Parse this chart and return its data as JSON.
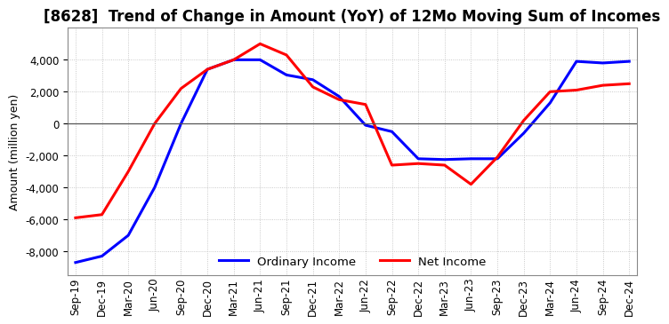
{
  "title": "[8628]  Trend of Change in Amount (YoY) of 12Mo Moving Sum of Incomes",
  "ylabel": "Amount (million yen)",
  "ylim": [
    -9500,
    6000
  ],
  "yticks": [
    -8000,
    -6000,
    -4000,
    -2000,
    0,
    2000,
    4000
  ],
  "legend_labels": [
    "Ordinary Income",
    "Net Income"
  ],
  "line_colors": [
    "#0000ff",
    "#ff0000"
  ],
  "x_labels": [
    "Sep-19",
    "Dec-19",
    "Mar-20",
    "Jun-20",
    "Sep-20",
    "Dec-20",
    "Mar-21",
    "Jun-21",
    "Sep-21",
    "Dec-21",
    "Mar-22",
    "Jun-22",
    "Sep-22",
    "Dec-22",
    "Mar-23",
    "Jun-23",
    "Sep-23",
    "Dec-23",
    "Mar-24",
    "Jun-24",
    "Sep-24",
    "Dec-24"
  ],
  "ordinary_income": [
    -8700,
    -8300,
    -7000,
    -4000,
    0,
    3400,
    4000,
    4000,
    3050,
    2750,
    1700,
    -100,
    -500,
    -2200,
    -2250,
    -2200,
    -2200,
    -600,
    1300,
    3900,
    3800,
    3900
  ],
  "net_income": [
    -5900,
    -5700,
    -3000,
    0,
    2200,
    3400,
    4000,
    5000,
    4300,
    2300,
    1500,
    1200,
    -2600,
    -2500,
    -2600,
    -3800,
    -2100,
    200,
    2000,
    2100,
    2400,
    2500
  ],
  "background_color": "#ffffff",
  "grid_color": "#bbbbbb",
  "grid_style": "dotted",
  "title_fontsize": 12,
  "label_fontsize": 9,
  "tick_fontsize": 8.5
}
